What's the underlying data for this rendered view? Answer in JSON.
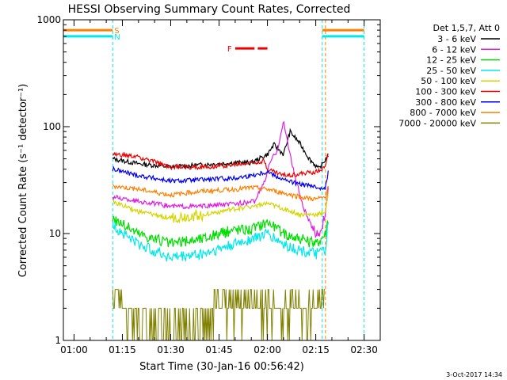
{
  "chart_data": {
    "type": "line",
    "title": "HESSI Observing Summary Count Rates, Corrected",
    "xlabel": "Start Time (30-Jan-16 00:56:42)",
    "ylabel": "Corrected Count Rate (s⁻¹ detector⁻¹)",
    "y_scale": "log",
    "ylim": [
      1,
      1000
    ],
    "xlim": [
      "00:56:42",
      "02:35:00"
    ],
    "x_tick_labels": [
      "01:00",
      "01:15",
      "01:30",
      "01:45",
      "02:00",
      "02:15",
      "02:30"
    ],
    "y_tick_labels": [
      "1",
      "10",
      "100",
      "1000"
    ],
    "legend_title": "Det 1,5,7, Att 0",
    "legend_placement": "right",
    "timestamp": "3-Oct-2017 14:34",
    "series": [
      {
        "name": "3 - 6 keV",
        "color": "#000000",
        "x": [
          "01:12",
          "01:20",
          "01:30",
          "01:40",
          "01:50",
          "01:55",
          "02:00",
          "02:02",
          "02:05",
          "02:07",
          "02:10",
          "02:13",
          "02:16",
          "02:19"
        ],
        "y": [
          50,
          45,
          42,
          44,
          46,
          46,
          55,
          68,
          55,
          90,
          70,
          50,
          40,
          55
        ]
      },
      {
        "name": "6 - 12 keV",
        "color": "#e020e0",
        "x": [
          "01:12",
          "01:20",
          "01:30",
          "01:40",
          "01:50",
          "01:56",
          "01:59",
          "02:01",
          "02:03",
          "02:05",
          "02:08",
          "02:11",
          "02:14",
          "02:16",
          "02:18",
          "02:19"
        ],
        "y": [
          22,
          20,
          18,
          18,
          19,
          20,
          30,
          48,
          60,
          110,
          40,
          18,
          11,
          10,
          15,
          30
        ]
      },
      {
        "name": "12 - 25 keV",
        "color": "#00dd00",
        "x": [
          "01:12",
          "01:20",
          "01:30",
          "01:40",
          "01:50",
          "01:55",
          "02:00",
          "02:05",
          "02:10",
          "02:15",
          "02:18",
          "02:19"
        ],
        "y": [
          14,
          10,
          8,
          9,
          11,
          11,
          13,
          10,
          9,
          8,
          10,
          15
        ]
      },
      {
        "name": "25 - 50 keV",
        "color": "#00e8e8",
        "x": [
          "01:12",
          "01:20",
          "01:30",
          "01:40",
          "01:50",
          "01:55",
          "02:00",
          "02:05",
          "02:10",
          "02:15",
          "02:18",
          "02:19"
        ],
        "y": [
          12,
          8,
          6,
          6.5,
          8,
          9,
          10,
          8,
          7,
          6.5,
          7,
          14
        ]
      },
      {
        "name": "50 - 100 keV",
        "color": "#d4d400",
        "x": [
          "01:12",
          "01:20",
          "01:30",
          "01:40",
          "01:50",
          "01:55",
          "02:00",
          "02:05",
          "02:10",
          "02:15",
          "02:18",
          "02:19"
        ],
        "y": [
          20,
          16,
          14,
          15,
          17,
          18,
          19,
          17,
          15,
          15,
          16,
          25
        ]
      },
      {
        "name": "100 - 300 keV",
        "color": "#ee0000",
        "x": [
          "01:12",
          "01:20",
          "01:30",
          "01:40",
          "01:50",
          "01:55",
          "01:59",
          "02:00",
          "02:05",
          "02:10",
          "02:15",
          "02:18",
          "02:19"
        ],
        "y": [
          55,
          52,
          42,
          42,
          44,
          46,
          48,
          40,
          35,
          36,
          38,
          42,
          60
        ]
      },
      {
        "name": "300 - 800 keV",
        "color": "#0000ee",
        "x": [
          "01:12",
          "01:20",
          "01:30",
          "01:40",
          "01:50",
          "01:55",
          "02:00",
          "02:05",
          "02:10",
          "02:15",
          "02:18",
          "02:19"
        ],
        "y": [
          40,
          35,
          31,
          32,
          33,
          35,
          38,
          32,
          29,
          27,
          27,
          40
        ]
      },
      {
        "name": "800 - 7000 keV",
        "color": "#ff8000",
        "x": [
          "01:12",
          "01:20",
          "01:30",
          "01:40",
          "01:50",
          "01:55",
          "02:00",
          "02:05",
          "02:10",
          "02:15",
          "02:18",
          "02:19"
        ],
        "y": [
          28,
          26,
          23,
          25,
          26,
          27,
          26,
          24,
          22,
          21,
          22,
          30
        ]
      },
      {
        "name": "7000 - 20000 keV",
        "color": "#808000",
        "x": [
          "01:12",
          "01:15",
          "01:20",
          "01:30",
          "01:40",
          "01:45",
          "01:50",
          "01:55",
          "02:00",
          "02:05",
          "02:10",
          "02:15",
          "02:18"
        ],
        "y": [
          3,
          2,
          1.5,
          1.5,
          1.5,
          2.5,
          2,
          2.5,
          2,
          2,
          2,
          2,
          3
        ]
      }
    ],
    "state_bars": [
      {
        "label": "S",
        "color": "#ff8000",
        "y": 800,
        "segments": [
          [
            "00:56:42",
            "01:12"
          ],
          [
            "02:17",
            "02:30"
          ]
        ]
      },
      {
        "label": "N",
        "color": "#00e8e8",
        "y": 700,
        "segments": [
          [
            "00:56:42",
            "01:12"
          ],
          [
            "02:17",
            "02:30"
          ]
        ]
      },
      {
        "label": "F",
        "color": "#ee0000",
        "y": 540,
        "segments": [
          [
            "01:50",
            "01:56"
          ],
          [
            "01:57",
            "02:00"
          ]
        ]
      }
    ],
    "vertical_markers": [
      {
        "x": "00:56:42",
        "color": "#00e8e8"
      },
      {
        "x": "01:12",
        "color": "#00e8e8"
      },
      {
        "x": "02:17",
        "color": "#00e8e8"
      },
      {
        "x": "02:18",
        "color": "#ff8000"
      },
      {
        "x": "02:30",
        "color": "#00e8e8"
      }
    ]
  }
}
